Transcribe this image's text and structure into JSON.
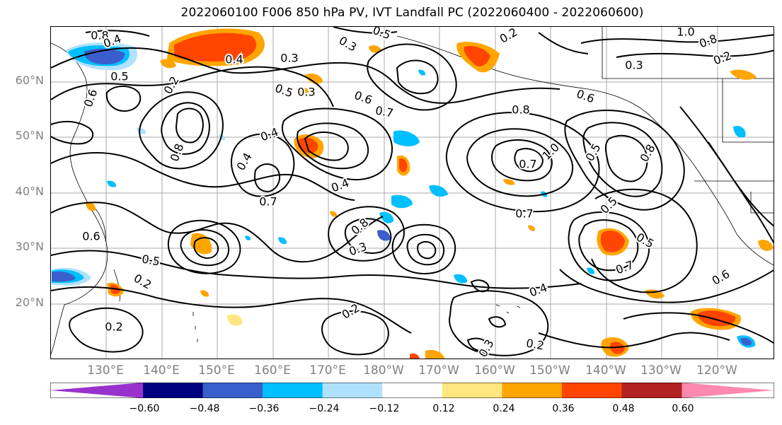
{
  "title": "2022060100 F006 850 hPa PV, IVT Landfall PC (2022060400 - 2022060600)",
  "axes": {
    "lat_ticks": [
      "60°N",
      "50°N",
      "40°N",
      "30°N",
      "20°N"
    ],
    "lon_ticks": [
      "130°E",
      "140°E",
      "150°E",
      "160°E",
      "170°E",
      "180°W",
      "170°W",
      "160°W",
      "150°W",
      "140°W",
      "130°W",
      "120°W"
    ]
  },
  "colorbar": {
    "labels": [
      "−0.60",
      "−0.48",
      "−0.36",
      "−0.24",
      "−0.12",
      "0.12",
      "0.24",
      "0.36",
      "0.48",
      "0.60"
    ],
    "colors": [
      "#9932cc",
      "#000080",
      "#3a5fcd",
      "#00bfff",
      "#b0e2ff",
      "#ffffff",
      "#ffe680",
      "#ffa500",
      "#ff4500",
      "#b22222",
      "#ff88b0"
    ]
  },
  "contour_labels": [
    "0.8",
    "0.4",
    "0.3",
    "0.5",
    "0.6",
    "0.2",
    "0.3",
    "0.4",
    "0.3",
    "1.0",
    "0.8",
    "0.2",
    "0.5",
    "0.3",
    "0.5",
    "0.6",
    "0.7",
    "0.4",
    "0.8",
    "0.4",
    "0.2",
    "0.6",
    "0.8",
    "1.0",
    "0.5",
    "0.7",
    "0.7",
    "0.4",
    "0.8",
    "0.3",
    "0.5",
    "0.7",
    "0.5",
    "0.6",
    "0.2",
    "0.7",
    "0.6",
    "0.8",
    "0.4",
    "0.5",
    "0.2",
    "0.3",
    "0.2",
    "0.2"
  ]
}
